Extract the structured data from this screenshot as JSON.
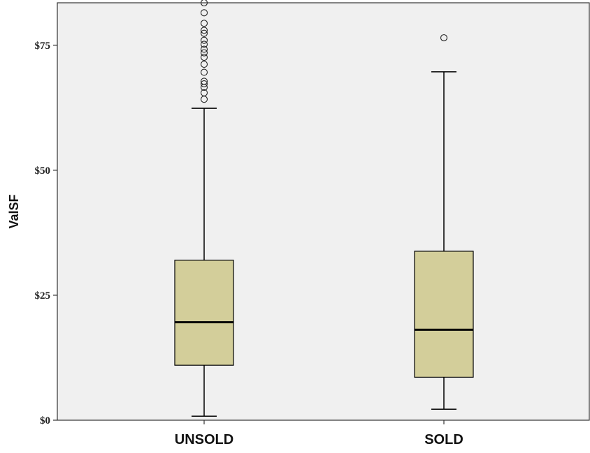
{
  "chart_data": {
    "type": "boxplot",
    "ylabel": "ValSF",
    "xlabel": "",
    "title": "",
    "ylim": [
      0,
      83.5
    ],
    "yticks": [
      0,
      25,
      50,
      75
    ],
    "ytick_labels": [
      "$0",
      "$25",
      "$50",
      "$75"
    ],
    "grid": false,
    "colors": {
      "plot_bg": "#f0f0f0",
      "box_fill": "#d3ce9a",
      "line": "#000000"
    },
    "categories": [
      "UNSOLD",
      "SOLD"
    ],
    "boxes": [
      {
        "category": "UNSOLD",
        "whisker_low": 0.8,
        "q1": 11.0,
        "median": 19.6,
        "q3": 32.0,
        "whisker_high": 62.4,
        "outliers": [
          64.2,
          65.5,
          66.6,
          67.3,
          67.8,
          69.6,
          71.2,
          72.6,
          73.5,
          74.2,
          75.2,
          76.0,
          77.4,
          78.0,
          79.4,
          81.5,
          83.5
        ]
      },
      {
        "category": "SOLD",
        "whisker_low": 2.2,
        "q1": 8.6,
        "median": 18.1,
        "q3": 33.8,
        "whisker_high": 69.7,
        "outliers": [
          76.5
        ]
      }
    ]
  }
}
